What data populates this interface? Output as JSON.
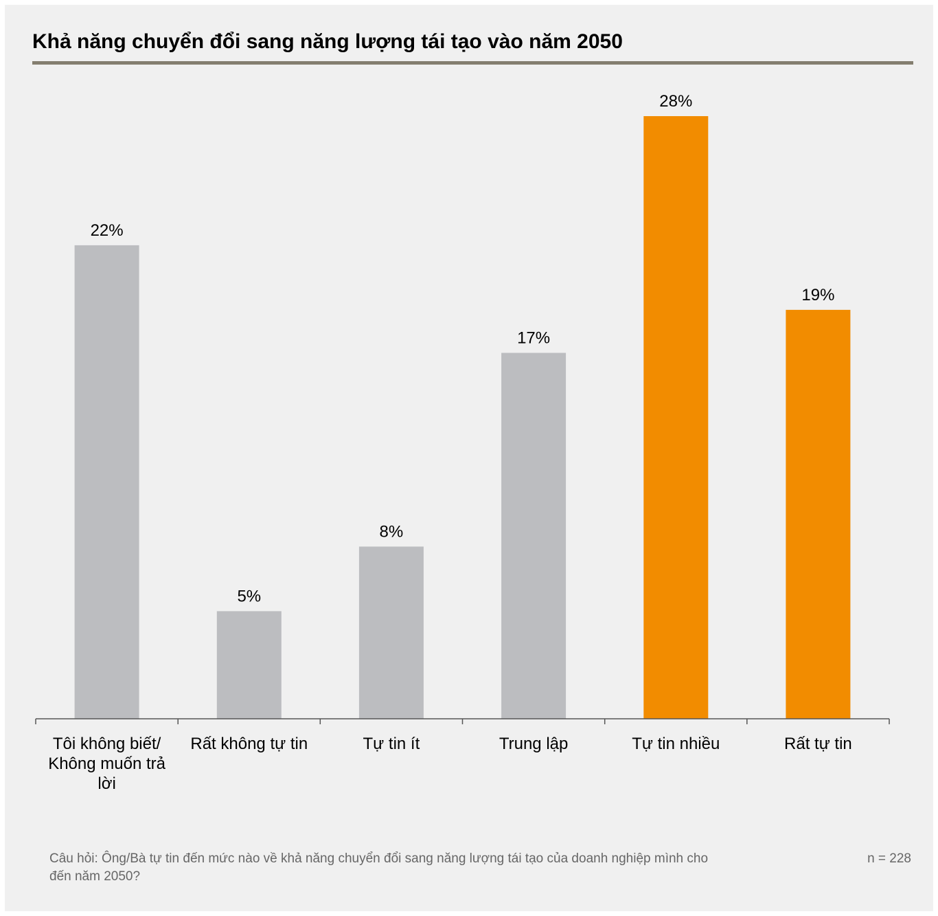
{
  "title": "Khả năng chuyển đổi sang năng lượng tái tạo vào năm 2050",
  "footnote": "Câu hỏi: Ông/Bà tự tin đến mức nào về khả năng chuyển đổi sang năng lượng tái tạo của doanh nghiệp mình cho đến năm 2050?",
  "sample_size": "n = 228",
  "colors": {
    "neutral": "#bcbdc0",
    "highlight": "#f28c00",
    "rule": "#847e6f",
    "axis": "#555555"
  },
  "chart_data": {
    "type": "bar",
    "title": "Khả năng chuyển đổi sang năng lượng tái tạo vào năm 2050",
    "categories": [
      [
        "Tôi không biết/",
        "Không muốn trả",
        "lời"
      ],
      [
        "Rất không tự tin"
      ],
      [
        "Tự tin ít"
      ],
      [
        "Trung lập"
      ],
      [
        "Tự tin nhiều"
      ],
      [
        "Rất tự tin"
      ]
    ],
    "values": [
      22,
      5,
      8,
      17,
      28,
      19
    ],
    "value_labels": [
      "22%",
      "5%",
      "8%",
      "17%",
      "28%",
      "19%"
    ],
    "highlighted": [
      false,
      false,
      false,
      false,
      true,
      true
    ],
    "ylim": [
      0,
      28
    ],
    "xlabel": "",
    "ylabel": "",
    "grid": false,
    "legend": "none"
  }
}
